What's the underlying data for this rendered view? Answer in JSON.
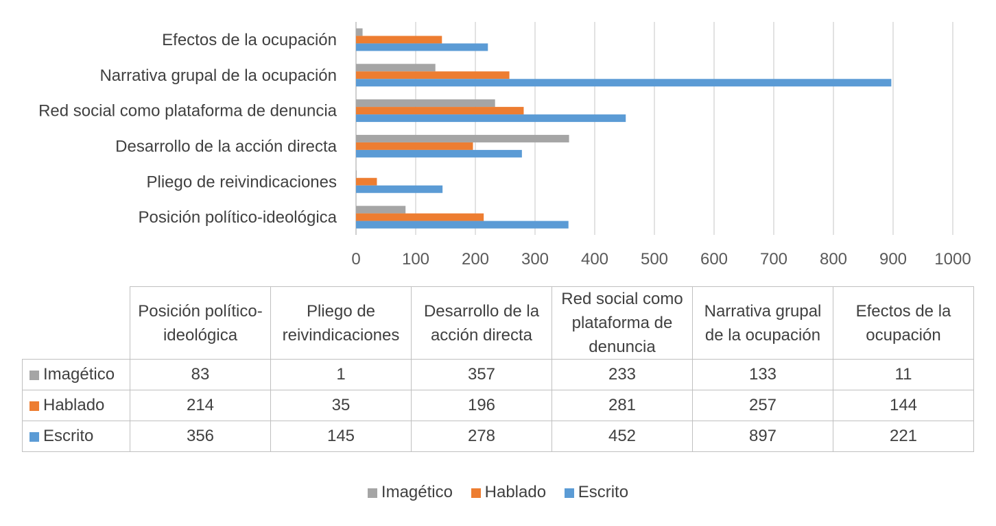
{
  "chart_data": {
    "type": "bar",
    "orientation": "horizontal",
    "categories": [
      "Posición político-ideológica",
      "Pliego de reivindicaciones",
      "Desarrollo de la acción directa",
      "Red social como plataforma de denuncia",
      "Narrativa grupal de la ocupación",
      "Efectos de la ocupación"
    ],
    "series": [
      {
        "name": "Imagético",
        "color": "#a5a5a5",
        "values": [
          83,
          1,
          357,
          233,
          133,
          11
        ]
      },
      {
        "name": "Hablado",
        "color": "#ed7d31",
        "values": [
          214,
          35,
          196,
          281,
          257,
          144
        ]
      },
      {
        "name": "Escrito",
        "color": "#5b9bd5",
        "values": [
          356,
          145,
          278,
          452,
          897,
          221
        ]
      }
    ],
    "xlim": [
      0,
      1000
    ],
    "xticks": [
      "0",
      "100",
      "200",
      "300",
      "400",
      "500",
      "600",
      "700",
      "800",
      "900",
      "1000"
    ],
    "grid": true,
    "legend": "bottom",
    "data_table": true,
    "table_headers": [
      "Posición político-ideológica",
      "Pliego de reivindicaciones",
      "Desarrollo de la acción directa",
      "Red social como plataforma de denuncia",
      "Narrativa grupal de la ocupación",
      "Efectos de la ocupación"
    ],
    "table_rows": [
      {
        "label": "Imagético",
        "color": "#a5a5a5",
        "values": [
          "83",
          "1",
          "357",
          "233",
          "133",
          "11"
        ]
      },
      {
        "label": "Hablado",
        "color": "#ed7d31",
        "values": [
          "214",
          "35",
          "196",
          "281",
          "257",
          "144"
        ]
      },
      {
        "label": "Escrito",
        "color": "#5b9bd5",
        "values": [
          "356",
          "145",
          "278",
          "452",
          "897",
          "221"
        ]
      }
    ],
    "legend_entries": [
      {
        "name": "Imagético",
        "color": "#a5a5a5"
      },
      {
        "name": "Hablado",
        "color": "#ed7d31"
      },
      {
        "name": "Escrito",
        "color": "#5b9bd5"
      }
    ]
  }
}
